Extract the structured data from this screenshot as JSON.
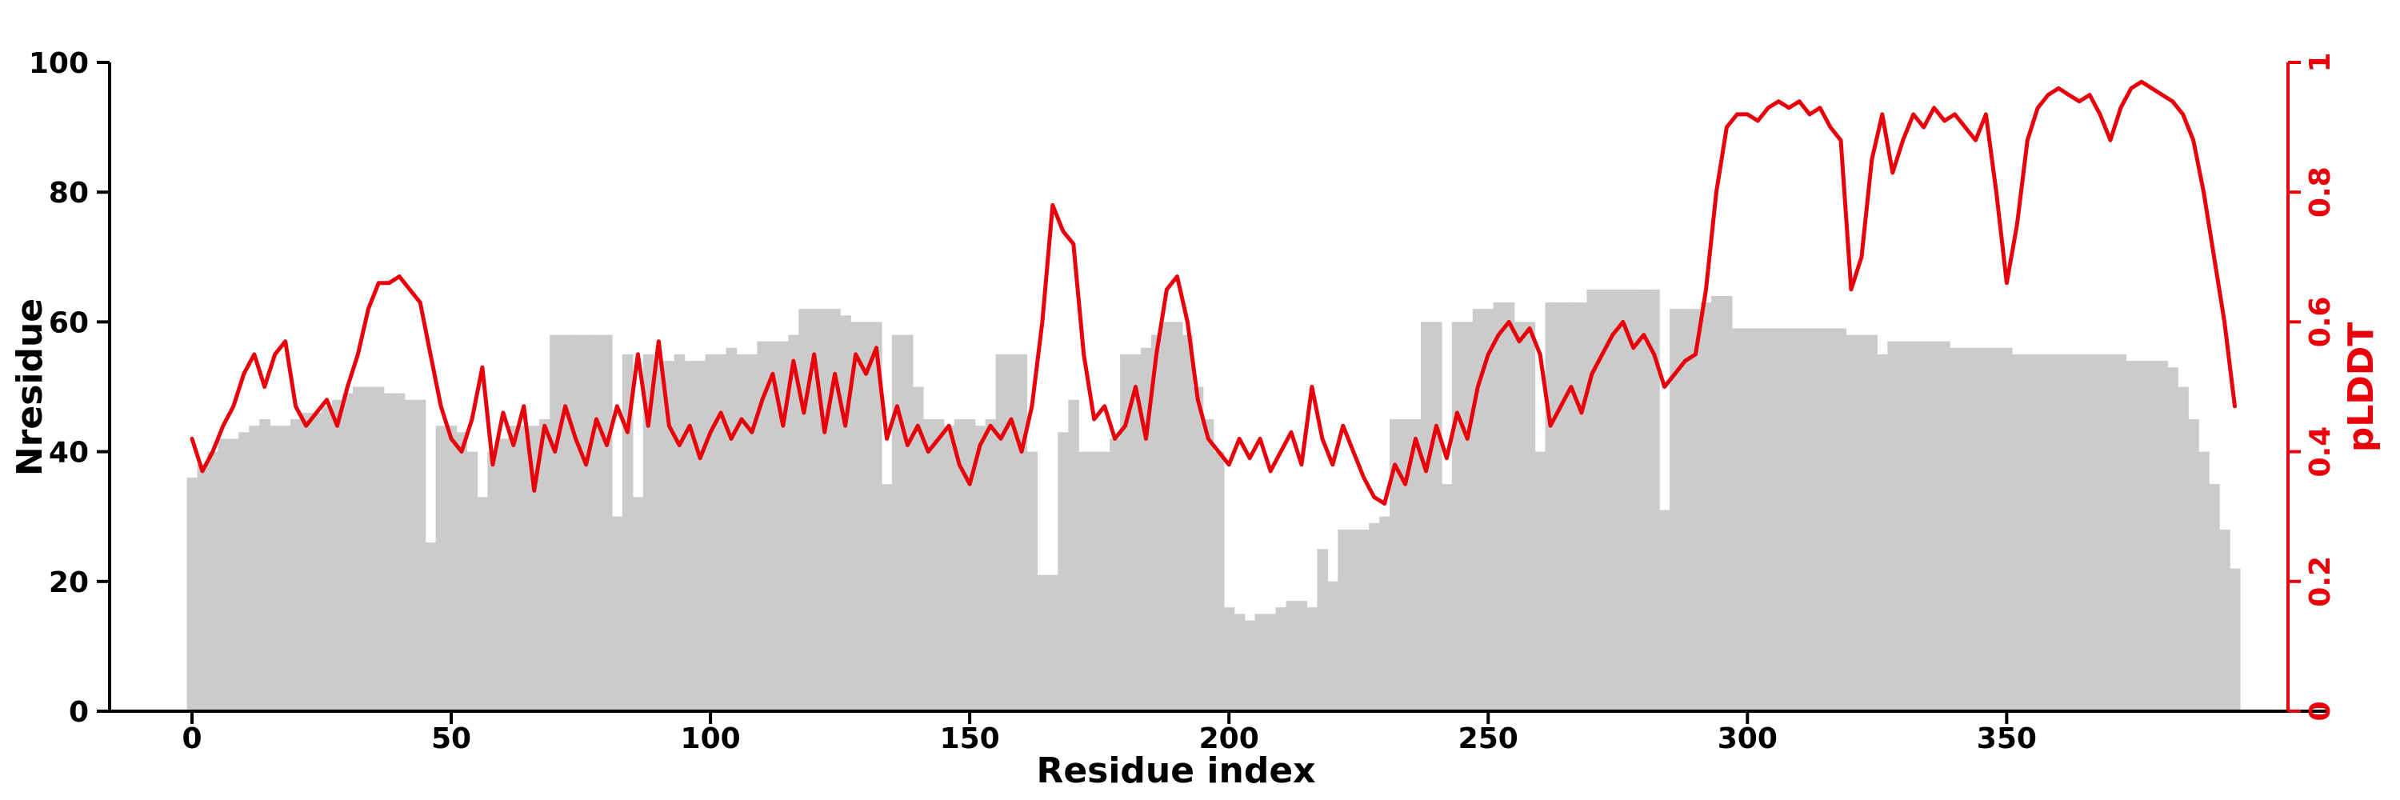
{
  "figure": {
    "background": "#ffffff"
  },
  "colors": {
    "bar": "#cbcbcb",
    "line": "#e8000b",
    "axis": "#000000"
  },
  "chart_data": {
    "type": "bar",
    "title": "",
    "xlabel": "Residue index",
    "ylabel": "Nresidue",
    "ylabel_right": "pLDDT",
    "xlim": [
      0,
      395
    ],
    "ylim_left": [
      0,
      100
    ],
    "ylim_right": [
      0,
      1
    ],
    "x_ticks": [
      0,
      50,
      100,
      150,
      200,
      250,
      300,
      350
    ],
    "y_left_ticks": [
      0,
      20,
      40,
      60,
      80,
      100
    ],
    "y_right_ticks": [
      0,
      0.2,
      0.4,
      0.6,
      0.8,
      1
    ],
    "grid": false,
    "legend": "none",
    "x": [
      0,
      2,
      4,
      6,
      8,
      10,
      12,
      14,
      16,
      18,
      20,
      22,
      24,
      26,
      28,
      30,
      32,
      34,
      36,
      38,
      40,
      42,
      44,
      46,
      48,
      50,
      52,
      54,
      56,
      58,
      60,
      62,
      64,
      66,
      68,
      70,
      72,
      74,
      76,
      78,
      80,
      82,
      84,
      86,
      88,
      90,
      92,
      94,
      96,
      98,
      100,
      102,
      104,
      106,
      108,
      110,
      112,
      114,
      116,
      118,
      120,
      122,
      124,
      126,
      128,
      130,
      132,
      134,
      136,
      138,
      140,
      142,
      144,
      146,
      148,
      150,
      152,
      154,
      156,
      158,
      160,
      162,
      164,
      166,
      168,
      170,
      172,
      174,
      176,
      178,
      180,
      182,
      184,
      186,
      188,
      190,
      192,
      194,
      196,
      198,
      200,
      202,
      204,
      206,
      208,
      210,
      212,
      214,
      216,
      218,
      220,
      222,
      224,
      226,
      228,
      230,
      232,
      234,
      236,
      238,
      240,
      242,
      244,
      246,
      248,
      250,
      252,
      254,
      256,
      258,
      260,
      262,
      264,
      266,
      268,
      270,
      272,
      274,
      276,
      278,
      280,
      282,
      284,
      286,
      288,
      290,
      292,
      294,
      296,
      298,
      300,
      302,
      304,
      306,
      308,
      310,
      312,
      314,
      316,
      318,
      320,
      322,
      324,
      326,
      328,
      330,
      332,
      334,
      336,
      338,
      340,
      342,
      344,
      346,
      348,
      350,
      352,
      354,
      356,
      358,
      360,
      362,
      364,
      366,
      368,
      370,
      372,
      374,
      376,
      378,
      380,
      382,
      384,
      386,
      388,
      390,
      392,
      394
    ],
    "series": [
      {
        "name": "Nresidue",
        "type": "bar",
        "axis": "left",
        "color": "#cbcbcb",
        "values": [
          36,
          38,
          40,
          42,
          42,
          43,
          44,
          45,
          44,
          44,
          45,
          46,
          46,
          47,
          48,
          49,
          50,
          50,
          50,
          49,
          49,
          48,
          48,
          26,
          44,
          44,
          43,
          40,
          33,
          40,
          42,
          44,
          44,
          44,
          45,
          58,
          58,
          58,
          58,
          58,
          58,
          30,
          55,
          33,
          55,
          54,
          54,
          55,
          54,
          54,
          55,
          55,
          56,
          55,
          55,
          57,
          57,
          57,
          58,
          62,
          62,
          62,
          62,
          61,
          60,
          60,
          60,
          35,
          58,
          58,
          50,
          45,
          45,
          44,
          45,
          45,
          44,
          45,
          55,
          55,
          55,
          40,
          21,
          21,
          43,
          48,
          40,
          40,
          40,
          42,
          55,
          55,
          56,
          58,
          60,
          60,
          58,
          50,
          45,
          40,
          16,
          15,
          14,
          15,
          15,
          16,
          17,
          17,
          16,
          25,
          20,
          28,
          28,
          28,
          29,
          30,
          45,
          45,
          45,
          60,
          60,
          35,
          60,
          60,
          62,
          62,
          63,
          63,
          60,
          60,
          40,
          63,
          63,
          63,
          63,
          65,
          65,
          65,
          65,
          65,
          65,
          65,
          31,
          62,
          62,
          62,
          63,
          64,
          64,
          59,
          59,
          59,
          59,
          59,
          59,
          59,
          59,
          59,
          59,
          59,
          58,
          58,
          58,
          55,
          57,
          57,
          57,
          57,
          57,
          57,
          56,
          56,
          56,
          56,
          56,
          56,
          55,
          55,
          55,
          55,
          55,
          55,
          55,
          55,
          55,
          55,
          55,
          54,
          54,
          54,
          54,
          53,
          50,
          45,
          40,
          35,
          28,
          22
        ]
      },
      {
        "name": "pLDDT",
        "type": "line",
        "axis": "right",
        "color": "#e8000b",
        "values": [
          0.42,
          0.37,
          0.4,
          0.44,
          0.47,
          0.52,
          0.55,
          0.5,
          0.55,
          0.57,
          0.47,
          0.44,
          0.46,
          0.48,
          0.44,
          0.5,
          0.55,
          0.62,
          0.66,
          0.66,
          0.67,
          0.65,
          0.63,
          0.55,
          0.47,
          0.42,
          0.4,
          0.45,
          0.53,
          0.38,
          0.46,
          0.41,
          0.47,
          0.34,
          0.44,
          0.4,
          0.47,
          0.42,
          0.38,
          0.45,
          0.41,
          0.47,
          0.43,
          0.55,
          0.44,
          0.57,
          0.44,
          0.41,
          0.44,
          0.39,
          0.43,
          0.46,
          0.42,
          0.45,
          0.43,
          0.48,
          0.52,
          0.44,
          0.54,
          0.46,
          0.55,
          0.43,
          0.52,
          0.44,
          0.55,
          0.52,
          0.56,
          0.42,
          0.47,
          0.41,
          0.44,
          0.4,
          0.42,
          0.44,
          0.38,
          0.35,
          0.41,
          0.44,
          0.42,
          0.45,
          0.4,
          0.47,
          0.6,
          0.78,
          0.74,
          0.72,
          0.55,
          0.45,
          0.47,
          0.42,
          0.44,
          0.5,
          0.42,
          0.55,
          0.65,
          0.67,
          0.6,
          0.48,
          0.42,
          0.4,
          0.38,
          0.42,
          0.39,
          0.42,
          0.37,
          0.4,
          0.43,
          0.38,
          0.5,
          0.42,
          0.38,
          0.44,
          0.4,
          0.36,
          0.33,
          0.32,
          0.38,
          0.35,
          0.42,
          0.37,
          0.44,
          0.39,
          0.46,
          0.42,
          0.5,
          0.55,
          0.58,
          0.6,
          0.57,
          0.59,
          0.55,
          0.44,
          0.47,
          0.5,
          0.46,
          0.52,
          0.55,
          0.58,
          0.6,
          0.56,
          0.58,
          0.55,
          0.5,
          0.52,
          0.54,
          0.55,
          0.65,
          0.8,
          0.9,
          0.92,
          0.92,
          0.91,
          0.93,
          0.94,
          0.93,
          0.94,
          0.92,
          0.93,
          0.9,
          0.88,
          0.65,
          0.7,
          0.85,
          0.92,
          0.83,
          0.88,
          0.92,
          0.9,
          0.93,
          0.91,
          0.92,
          0.9,
          0.88,
          0.92,
          0.8,
          0.66,
          0.75,
          0.88,
          0.93,
          0.95,
          0.96,
          0.95,
          0.94,
          0.95,
          0.92,
          0.88,
          0.93,
          0.96,
          0.97,
          0.96,
          0.95,
          0.94,
          0.92,
          0.88,
          0.8,
          0.7,
          0.6,
          0.47
        ]
      }
    ]
  }
}
